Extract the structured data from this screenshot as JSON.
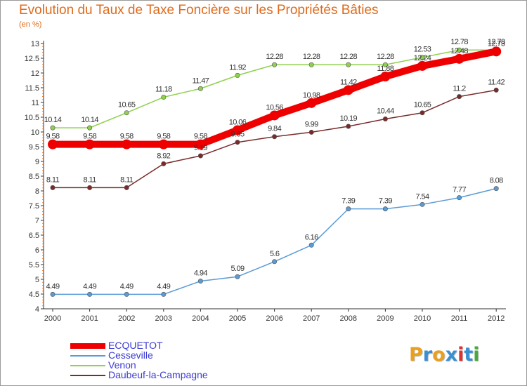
{
  "title": "Evolution du Taux de Taxe Foncière sur les Propriétés Bâties",
  "subtitle": "(en %)",
  "logo": {
    "text": "Proxiti",
    "letters": [
      {
        "ch": "P",
        "color": "#e8a020"
      },
      {
        "ch": "r",
        "color": "#3a8fd0"
      },
      {
        "ch": "o",
        "color": "#e8a020"
      },
      {
        "ch": "x",
        "color": "#3a8fd0"
      },
      {
        "ch": "i",
        "color": "#e03030"
      },
      {
        "ch": "t",
        "color": "#3a8fd0"
      },
      {
        "ch": "i",
        "color": "#4aa83a"
      }
    ]
  },
  "chart_data": {
    "type": "line",
    "title": "Evolution du Taux de Taxe Foncière sur les Propriétés Bâties",
    "ylabel": "(en %)",
    "xlabel": "",
    "categories": [
      "2000",
      "2001",
      "2002",
      "2003",
      "2004",
      "2005",
      "2006",
      "2007",
      "2008",
      "2009",
      "2010",
      "2011",
      "2012"
    ],
    "ylim": [
      4,
      13
    ],
    "ytick_step": 0.5,
    "yticks": [
      "4",
      "4.5",
      "5",
      "5.5",
      "6",
      "6.5",
      "7",
      "7.5",
      "8",
      "8.5",
      "9",
      "9.5",
      "10",
      "10.5",
      "11",
      "11.5",
      "12",
      "12.5",
      "13"
    ],
    "grid": false,
    "legend_position": "bottom-left",
    "series": [
      {
        "name": "ECQUETOT",
        "color": "#ee0000",
        "emphasis": true,
        "values": [
          9.58,
          9.58,
          9.58,
          9.58,
          9.58,
          10.06,
          10.56,
          10.98,
          11.42,
          11.88,
          12.24,
          12.48,
          12.73
        ],
        "labels": [
          "9.58",
          "9.58",
          "9.58",
          "9.58",
          "9.58",
          "10.06",
          "10.56",
          "10.98",
          "11.42",
          "11.88",
          "12.24",
          "12.48",
          "12.73"
        ]
      },
      {
        "name": "Cesseville",
        "color": "#5b9bd5",
        "values": [
          4.49,
          4.49,
          4.49,
          4.49,
          4.94,
          5.09,
          5.6,
          6.16,
          7.39,
          7.39,
          7.54,
          7.77,
          8.08
        ],
        "labels": [
          "4.49",
          "4.49",
          "4.49",
          "4.49",
          "4.94",
          "5.09",
          "5.6",
          "6.16",
          "7.39",
          "7.39",
          "7.54",
          "7.77",
          "8.08"
        ]
      },
      {
        "name": "Venon",
        "color": "#8fd14f",
        "values": [
          10.14,
          10.14,
          10.65,
          11.18,
          11.47,
          11.92,
          12.28,
          12.28,
          12.28,
          12.28,
          12.53,
          12.78,
          12.78
        ],
        "labels": [
          "10.14",
          "10.14",
          "10.65",
          "11.18",
          "11.47",
          "11.92",
          "12.28",
          "12.28",
          "12.28",
          "12.28",
          "12.53",
          "12.78",
          "12.78"
        ]
      },
      {
        "name": "Daubeuf-la-Campagne",
        "color": "#7a2a2a",
        "values": [
          8.11,
          8.11,
          8.11,
          8.92,
          9.19,
          9.65,
          9.84,
          9.99,
          10.19,
          10.44,
          10.65,
          11.2,
          11.42
        ],
        "labels": [
          "8.11",
          "8.11",
          "8.11",
          "8.92",
          "9.19",
          "9.65",
          "9.84",
          "9.99",
          "10.19",
          "10.44",
          "10.65",
          "11.2",
          "11.42"
        ]
      }
    ]
  }
}
